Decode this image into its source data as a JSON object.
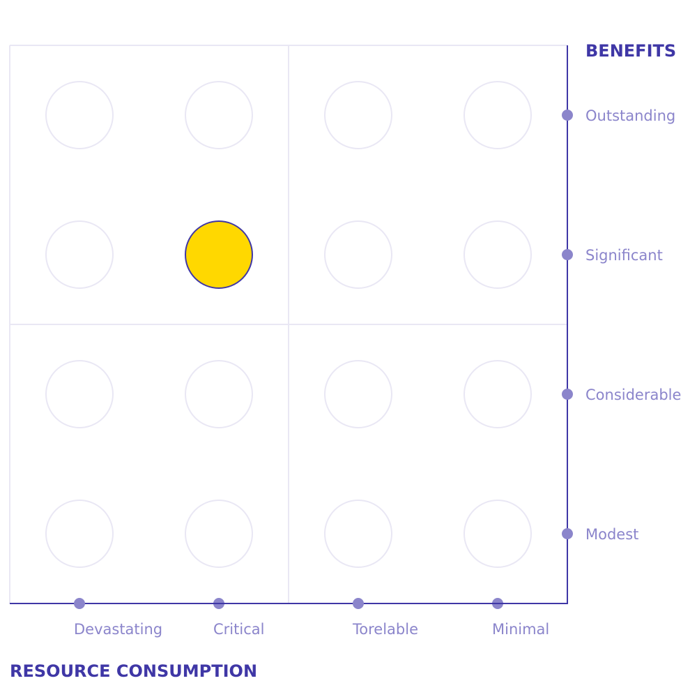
{
  "chart_data": {
    "type": "matrix",
    "x_axis": {
      "title": "RESOURCE CONSUMPTION",
      "categories": [
        "Devastating",
        "Critical",
        "Torelable",
        "Minimal"
      ]
    },
    "y_axis": {
      "title": "BENEFITS",
      "categories": [
        "Modest",
        "Considerable",
        "Significant",
        "Outstanding"
      ]
    },
    "selected": {
      "x": "Critical",
      "y": "Significant"
    },
    "grid": true
  },
  "colors": {
    "axis": "#3f37a6",
    "label": "#8b85cb",
    "grid": "#e9e7f4",
    "selected_fill": "#ffd800",
    "selected_stroke": "#3f37a6"
  }
}
